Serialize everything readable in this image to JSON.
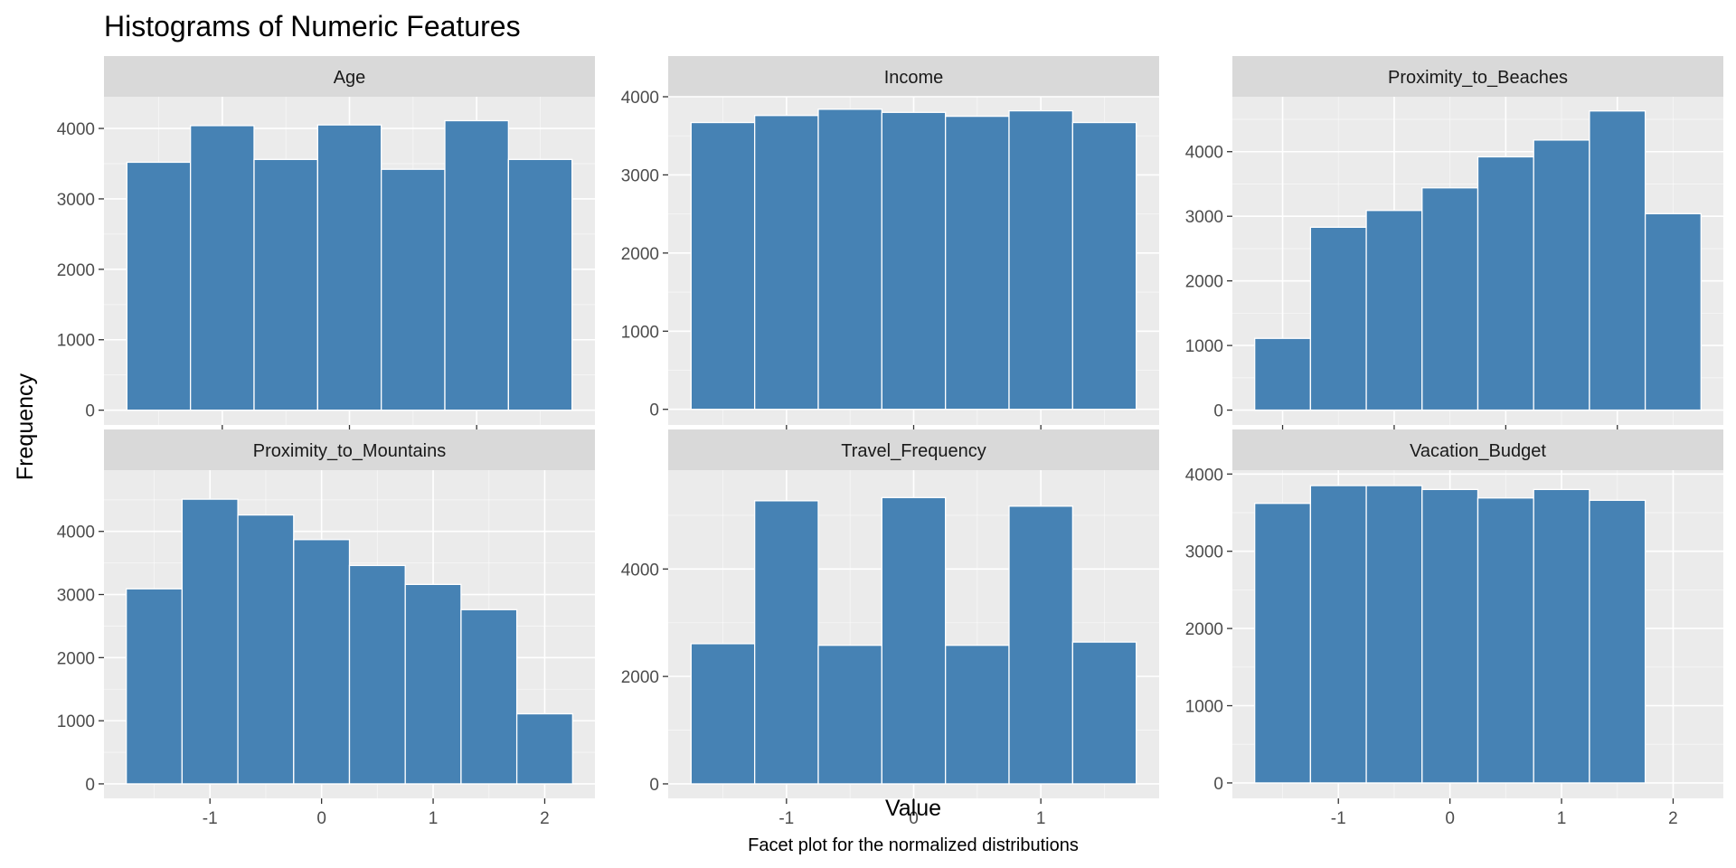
{
  "title": "Histograms of Numeric Features",
  "x_axis_title": "Value",
  "y_axis_title": "Frequency",
  "caption": "Facet plot for the normalized distributions",
  "colors": {
    "panel_bg": "#ebebeb",
    "grid_major": "#ffffff",
    "strip_bg": "#d9d9d9",
    "bar_fill": "#4682b4",
    "bar_stroke": "#ffffff"
  },
  "chart_data": [
    {
      "type": "bar",
      "facet": "Age",
      "bin_edges": [
        -1.75,
        -1.25,
        -0.75,
        -0.25,
        0.25,
        0.75,
        1.25,
        1.75
      ],
      "values": [
        3520,
        4040,
        3560,
        4050,
        3420,
        4110,
        3560
      ],
      "xlim": [
        -1.93,
        1.93
      ],
      "ylim": [
        -210,
        4450
      ],
      "xticks": [
        -1,
        0,
        1
      ],
      "yticks": [
        0,
        1000,
        2000,
        3000,
        4000
      ],
      "grid": true
    },
    {
      "type": "bar",
      "facet": "Income",
      "bin_edges": [
        -1.75,
        -1.25,
        -0.75,
        -0.25,
        0.25,
        0.75,
        1.25,
        1.75
      ],
      "values": [
        3670,
        3760,
        3840,
        3800,
        3750,
        3820,
        3670
      ],
      "xlim": [
        -1.93,
        1.93
      ],
      "ylim": [
        -200,
        4000
      ],
      "xticks": [
        -1,
        0,
        1
      ],
      "yticks": [
        0,
        1000,
        2000,
        3000,
        4000
      ],
      "grid": true
    },
    {
      "type": "bar",
      "facet": "Proximity_to_Beaches",
      "bin_edges": [
        -2.25,
        -1.75,
        -1.25,
        -0.75,
        -0.25,
        0.25,
        0.75,
        1.25,
        1.75
      ],
      "values": [
        1110,
        2830,
        3090,
        3440,
        3920,
        4180,
        4630,
        3040
      ],
      "xlim": [
        -2.45,
        1.95
      ],
      "ylim": [
        -230,
        4850
      ],
      "xticks": [
        -2,
        -1,
        0,
        1
      ],
      "yticks": [
        0,
        1000,
        2000,
        3000,
        4000
      ],
      "grid": true
    },
    {
      "type": "bar",
      "facet": "Proximity_to_Mountains",
      "bin_edges": [
        -1.75,
        -1.25,
        -0.75,
        -0.25,
        0.25,
        0.75,
        1.25,
        1.75,
        2.25
      ],
      "values": [
        3090,
        4510,
        4260,
        3870,
        3460,
        3160,
        2760,
        1110
      ],
      "xlim": [
        -1.95,
        2.45
      ],
      "ylim": [
        -230,
        4970
      ],
      "xticks": [
        -1,
        0,
        1,
        2
      ],
      "yticks": [
        0,
        1000,
        2000,
        3000,
        4000
      ],
      "grid": true
    },
    {
      "type": "bar",
      "facet": "Travel_Frequency",
      "bin_edges": [
        -1.75,
        -1.25,
        -0.75,
        -0.25,
        0.25,
        0.75,
        1.25,
        1.75
      ],
      "values": [
        2610,
        5270,
        2580,
        5330,
        2580,
        5170,
        2640
      ],
      "xlim": [
        -1.93,
        1.93
      ],
      "ylim": [
        -270,
        5840
      ],
      "xticks": [
        -1,
        0,
        1
      ],
      "yticks": [
        0,
        2000,
        4000
      ],
      "grid": true
    },
    {
      "type": "bar",
      "facet": "Vacation_Budget",
      "bin_edges": [
        -1.75,
        -1.25,
        -0.75,
        -0.25,
        0.25,
        0.75,
        1.25,
        1.75
      ],
      "values": [
        3620,
        3850,
        3850,
        3800,
        3690,
        3800,
        3660
      ],
      "xlim": [
        -1.95,
        2.45
      ],
      "ylim": [
        -200,
        4050
      ],
      "xticks": [
        -1,
        0,
        1,
        2
      ],
      "yticks": [
        0,
        1000,
        2000,
        3000,
        4000
      ],
      "grid": true
    }
  ]
}
